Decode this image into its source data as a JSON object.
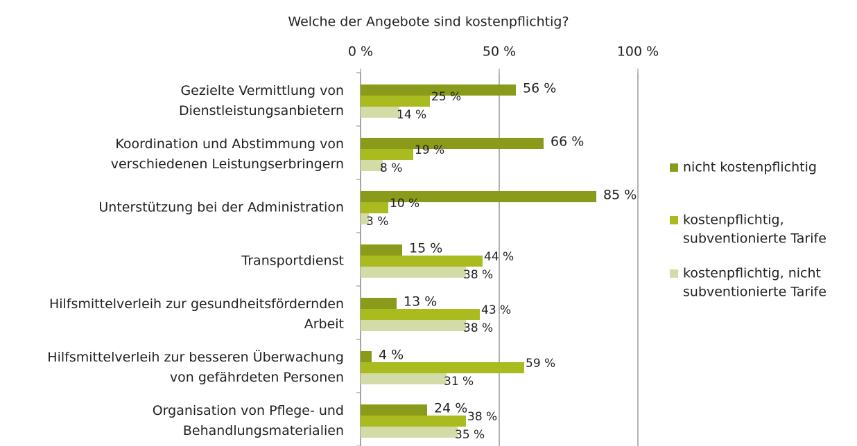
{
  "chart_data": {
    "type": "hbar",
    "title": "Welche der Angebote sind kostenpflichtig?",
    "categories": [
      [
        "Gezielte Vermittlung von",
        "Dienstleistungsanbietern"
      ],
      [
        "Koordination und Abstimmung von",
        "verschiedenen Leistungserbringern"
      ],
      [
        "Unterstützung bei der Administration"
      ],
      [
        "Transportdienst"
      ],
      [
        "Hilfsmittelverleih zur gesundheitsfördernden",
        "Arbeit"
      ],
      [
        "Hilfsmittelverleih zur besseren Überwachung",
        "von gefährdeten Personen"
      ],
      [
        "Organisation von Pflege- und",
        "Behandlungsmaterialien"
      ]
    ],
    "series": [
      {
        "name": [
          "nicht kostenpflichtig"
        ],
        "color": "#8a9a1b",
        "values": [
          56,
          66,
          85,
          15,
          13,
          4,
          24
        ],
        "value_labels": [
          "56 %",
          "66 %",
          "85 %",
          "15 %",
          "13 %",
          "4 %",
          "24 %"
        ]
      },
      {
        "name": [
          "kostenpflichtig,",
          "subventionierte Tarife"
        ],
        "color": "#a9bb1e",
        "values": [
          25,
          19,
          10,
          44,
          43,
          59,
          38
        ],
        "value_labels": [
          "25 %",
          "19 %",
          "10 %",
          "44 %",
          "43 %",
          "59 %",
          "38 %"
        ]
      },
      {
        "name": [
          "kostenpflichtig, nicht",
          "subventionierte Tarife"
        ],
        "color": "#d3dba6",
        "values": [
          14,
          8,
          3,
          38,
          38,
          31,
          35
        ],
        "value_labels": [
          "14 %",
          "8 %",
          "3 %",
          "38 %",
          "38 %",
          "31 %",
          "35 %"
        ]
      }
    ],
    "xlim": [
      0,
      100
    ],
    "xticks": [
      {
        "value": 0,
        "label": "0 %"
      },
      {
        "value": 50,
        "label": "50 %"
      },
      {
        "value": 100,
        "label": "100 %"
      }
    ],
    "grid": true,
    "legend": "right"
  }
}
